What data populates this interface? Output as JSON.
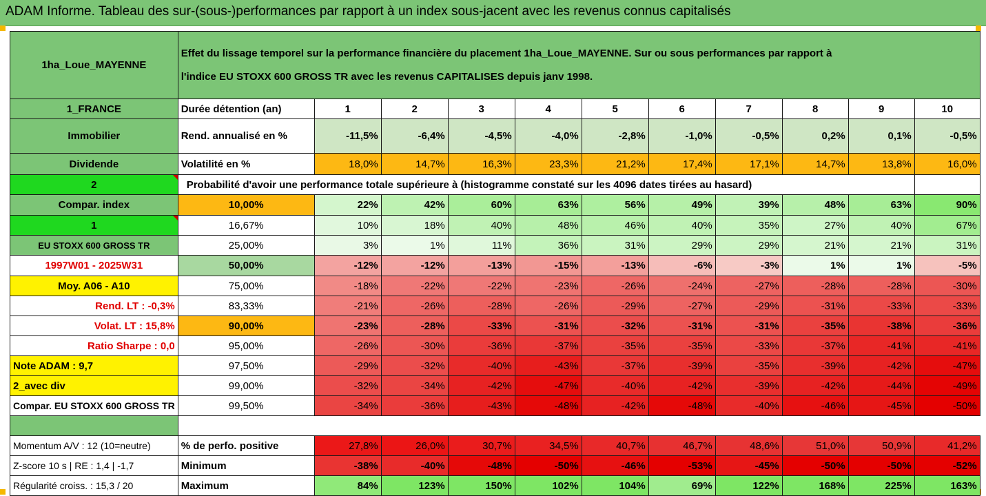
{
  "header": {
    "title": "ADAM Informe. Tableau des sur-(sous-)performances par rapport à un index sous-jacent avec les revenus connus capitalisés"
  },
  "block": {
    "name": "1ha_Loue_MAYENNE",
    "description_line1": "Effet du lissage temporel sur la performance financière du placement 1ha_Loue_MAYENNE. Sur ou sous performances par rapport à",
    "description_line2": "l'indice EU STOXX 600 GROSS TR avec les revenus CAPITALISES depuis janv 1998."
  },
  "side": {
    "country": "1_FRANCE",
    "category": "Immobilier",
    "income_type": "Dividende",
    "selector_2": "2",
    "compar_index": "Compar. index",
    "selector_1": "1",
    "index_name": "EU STOXX 600 GROSS TR",
    "period": "1997W01 - 2025W31",
    "avg_label": "Moy. A06 - A10",
    "rend_lt": "Rend. LT :   -0,3%",
    "volat_lt": "Volat. LT :   15,8%",
    "sharpe": "Ratio Sharpe :   0,0",
    "note": "Note ADAM : 9,7",
    "div": "2_avec div",
    "compar_full": "Compar. EU STOXX 600 GROSS TR"
  },
  "durations": {
    "label": "Durée détention (an)",
    "values": [
      "1",
      "2",
      "3",
      "4",
      "5",
      "6",
      "7",
      "8",
      "9",
      "10"
    ]
  },
  "rendement": {
    "label": "Rend. annualisé en %",
    "values": [
      "-11,5%",
      "-6,4%",
      "-4,5%",
      "-4,0%",
      "-2,8%",
      "-1,0%",
      "-0,5%",
      "0,2%",
      "0,1%",
      "-0,5%"
    ]
  },
  "volatilite": {
    "label": "Volatilité en %",
    "values": [
      "18,0%",
      "14,7%",
      "16,3%",
      "23,3%",
      "21,2%",
      "17,4%",
      "17,1%",
      "14,7%",
      "13,8%",
      "16,0%"
    ]
  },
  "probability_title": "Probabilité d'avoir une performance totale supérieure à (histogramme constaté sur les 4096 dates tirées au hasard)",
  "percentiles": [
    {
      "level": "10,00%",
      "values": [
        "22%",
        "42%",
        "60%",
        "63%",
        "56%",
        "49%",
        "39%",
        "48%",
        "63%",
        "90%"
      ]
    },
    {
      "level": "16,67%",
      "values": [
        "10%",
        "18%",
        "40%",
        "48%",
        "46%",
        "40%",
        "35%",
        "27%",
        "40%",
        "67%"
      ]
    },
    {
      "level": "25,00%",
      "values": [
        "3%",
        "1%",
        "11%",
        "36%",
        "31%",
        "29%",
        "29%",
        "21%",
        "21%",
        "31%"
      ]
    },
    {
      "level": "50,00%",
      "values": [
        "-12%",
        "-12%",
        "-13%",
        "-15%",
        "-13%",
        "-6%",
        "-3%",
        "1%",
        "1%",
        "-5%"
      ]
    },
    {
      "level": "75,00%",
      "values": [
        "-18%",
        "-22%",
        "-22%",
        "-23%",
        "-26%",
        "-24%",
        "-27%",
        "-28%",
        "-28%",
        "-30%"
      ]
    },
    {
      "level": "83,33%",
      "values": [
        "-21%",
        "-26%",
        "-28%",
        "-26%",
        "-29%",
        "-27%",
        "-29%",
        "-31%",
        "-33%",
        "-33%"
      ]
    },
    {
      "level": "90,00%",
      "values": [
        "-23%",
        "-28%",
        "-33%",
        "-31%",
        "-32%",
        "-31%",
        "-31%",
        "-35%",
        "-38%",
        "-36%"
      ]
    },
    {
      "level": "95,00%",
      "values": [
        "-26%",
        "-30%",
        "-36%",
        "-37%",
        "-35%",
        "-35%",
        "-33%",
        "-37%",
        "-41%",
        "-41%"
      ]
    },
    {
      "level": "97,50%",
      "values": [
        "-29%",
        "-32%",
        "-40%",
        "-43%",
        "-37%",
        "-39%",
        "-35%",
        "-39%",
        "-42%",
        "-47%"
      ]
    },
    {
      "level": "99,00%",
      "values": [
        "-32%",
        "-34%",
        "-42%",
        "-47%",
        "-40%",
        "-42%",
        "-39%",
        "-42%",
        "-44%",
        "-49%"
      ]
    },
    {
      "level": "99,50%",
      "values": [
        "-34%",
        "-36%",
        "-43%",
        "-48%",
        "-42%",
        "-48%",
        "-40%",
        "-46%",
        "-45%",
        "-50%"
      ]
    }
  ],
  "stats": {
    "momentum": "Momentum A/V : 12 (10=neutre)",
    "zscore": "Z-score 10 s  | RE : 1,4  | -1,7",
    "regularite": "Régularité croiss. : 15,3 / 20",
    "positive_label": "% de perfo. positive",
    "positive": [
      "27,8%",
      "26,0%",
      "30,7%",
      "34,5%",
      "40,7%",
      "46,7%",
      "48,6%",
      "51,0%",
      "50,9%",
      "41,2%"
    ],
    "min_label": "Minimum",
    "minimum": [
      "-38%",
      "-40%",
      "-48%",
      "-50%",
      "-46%",
      "-53%",
      "-45%",
      "-50%",
      "-50%",
      "-52%"
    ],
    "max_label": "Maximum",
    "maximum": [
      "84%",
      "123%",
      "150%",
      "102%",
      "104%",
      "69%",
      "122%",
      "168%",
      "225%",
      "163%"
    ]
  },
  "colors": {
    "header_green": "#7cc576",
    "bright_green": "#1fd81f",
    "highlight_yellow": "#fff200",
    "highlight_orange": "#fdb813",
    "label_red": "#e00000"
  }
}
